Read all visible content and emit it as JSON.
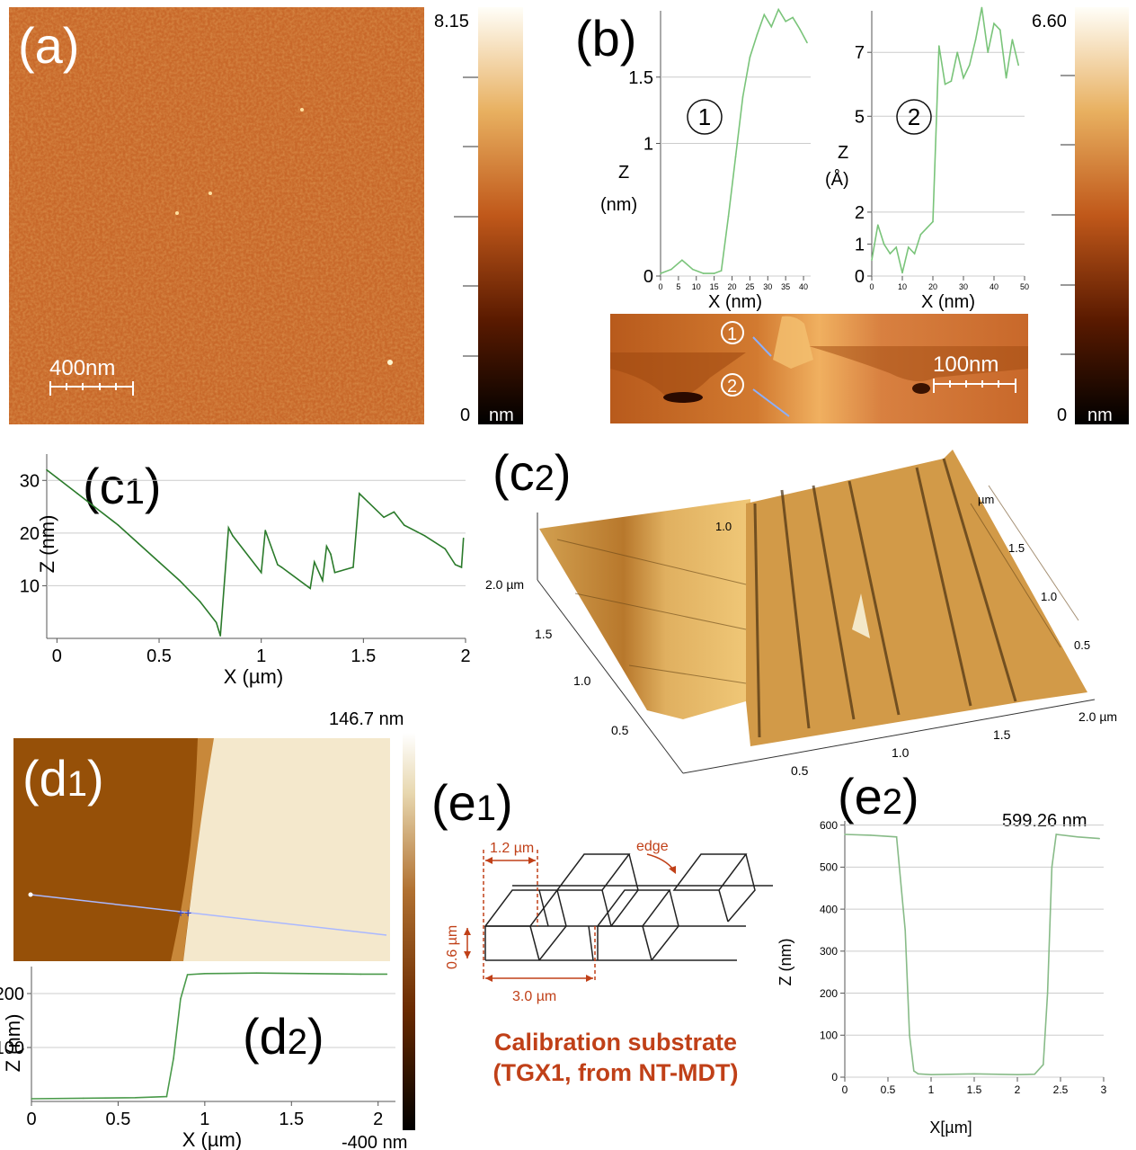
{
  "panels": {
    "a": {
      "label": "(a)",
      "scale_bar": "400nm",
      "colorbar": {
        "max": "8.15",
        "min": "0",
        "unit": "nm"
      }
    },
    "b": {
      "label": "(b)",
      "scale_bar": "100nm",
      "colorbar": {
        "max": "6.60",
        "min": "0",
        "unit": "nm"
      },
      "marker1": "1",
      "marker2": "2"
    },
    "c1": {
      "label": "(c1)"
    },
    "c2": {
      "label": "(c2)",
      "axis_y_ticks": [
        "2.0 µm",
        "1.5",
        "1.0",
        "0.5"
      ],
      "axis_x_ticks": [
        "0.5",
        "1.0",
        "1.5",
        "2.0 µm"
      ],
      "axis_z_ticks": [
        "1.0",
        "µm",
        "1.5",
        "1.0",
        "0.5"
      ]
    },
    "d1": {
      "label": "(d1)",
      "colorbar": {
        "max": "146.7 nm",
        "min": "-400 nm"
      }
    },
    "d2": {
      "label": "(d2)"
    },
    "e1": {
      "label": "(e1)",
      "dim_width": "1.2 µm",
      "dim_period": "3.0 µm",
      "dim_height": "0.6 µm",
      "edge_label": "edge",
      "caption_line1": "Calibration substrate",
      "caption_line2": "(TGX1, from NT-MDT)"
    },
    "e2": {
      "label": "(e2)",
      "annotation": "599.26 nm"
    }
  },
  "chart_data": [
    {
      "id": "b1",
      "type": "line",
      "xlabel": "X (nm)",
      "ylabel": "Z (nm)",
      "marker": "1",
      "xlim": [
        0,
        42
      ],
      "ylim": [
        0,
        2.0
      ],
      "x_ticks": [
        "0",
        "5",
        "10",
        "15",
        "20",
        "25",
        "30",
        "35",
        "40"
      ],
      "y_ticks": [
        "0",
        "1",
        "1.5"
      ],
      "x": [
        0,
        3,
        6,
        9,
        12,
        15,
        17,
        19,
        21,
        23,
        25,
        27,
        29,
        31,
        33,
        35,
        37,
        39,
        41
      ],
      "values": [
        0.02,
        0.05,
        0.12,
        0.05,
        0.02,
        0.02,
        0.04,
        0.45,
        0.9,
        1.35,
        1.65,
        1.82,
        1.97,
        1.88,
        2.01,
        1.92,
        1.95,
        1.86,
        1.76
      ]
    },
    {
      "id": "b2",
      "type": "line",
      "xlabel": "X (nm)",
      "ylabel": "Z (Å)",
      "marker": "2",
      "xlim": [
        0,
        50
      ],
      "ylim": [
        0,
        8.3
      ],
      "x_ticks": [
        "0",
        "10",
        "20",
        "30",
        "40",
        "50"
      ],
      "y_ticks": [
        "0",
        "1",
        "2",
        "5",
        "7"
      ],
      "x": [
        0,
        2,
        4,
        6,
        8,
        10,
        12,
        14,
        16,
        18,
        20,
        22,
        24,
        26,
        28,
        30,
        32,
        34,
        36,
        38,
        40,
        42,
        44,
        46,
        48
      ],
      "values": [
        0.5,
        1.6,
        1.0,
        0.7,
        0.9,
        0.1,
        0.9,
        0.7,
        1.3,
        1.5,
        1.7,
        7.2,
        6.0,
        6.1,
        7.0,
        6.2,
        6.6,
        7.4,
        8.4,
        7.0,
        7.9,
        7.7,
        6.2,
        7.4,
        6.6
      ]
    },
    {
      "id": "c1",
      "type": "line",
      "xlabel": "X (µm)",
      "ylabel": "Z (nm)",
      "xlim": [
        -0.05,
        2.0
      ],
      "ylim": [
        0,
        35
      ],
      "x_ticks": [
        "0",
        "0.5",
        "1",
        "1.5",
        "2"
      ],
      "y_ticks": [
        "10",
        "20",
        "30"
      ],
      "x": [
        -0.05,
        0.0,
        0.1,
        0.2,
        0.3,
        0.4,
        0.5,
        0.6,
        0.7,
        0.78,
        0.8,
        0.84,
        0.86,
        1.0,
        1.02,
        1.08,
        1.1,
        1.24,
        1.26,
        1.3,
        1.32,
        1.34,
        1.36,
        1.45,
        1.48,
        1.52,
        1.6,
        1.65,
        1.7,
        1.8,
        1.9,
        1.95,
        1.98,
        1.99
      ],
      "values": [
        32,
        30.5,
        27.5,
        24.5,
        21.5,
        18,
        14.5,
        11,
        7,
        3,
        0.5,
        21,
        19.5,
        12.5,
        20.5,
        14,
        13.5,
        9.5,
        14.5,
        11,
        17.5,
        16,
        12.5,
        13.5,
        27.5,
        26,
        23,
        24,
        21.5,
        19.5,
        17,
        14,
        13.5,
        19
      ]
    },
    {
      "id": "d2",
      "type": "line",
      "xlabel": "X (µm)",
      "ylabel": "Z (nm)",
      "xlim": [
        0,
        2.1
      ],
      "ylim": [
        0,
        250
      ],
      "x_ticks": [
        "0",
        "0.5",
        "1",
        "1.5",
        "2"
      ],
      "y_ticks": [
        "100",
        "200"
      ],
      "x": [
        0,
        0.3,
        0.6,
        0.78,
        0.82,
        0.86,
        0.9,
        1.0,
        1.3,
        1.6,
        1.9,
        2.05
      ],
      "values": [
        5,
        6,
        7,
        9,
        80,
        190,
        235,
        237,
        238,
        237,
        236,
        236
      ]
    },
    {
      "id": "e2",
      "type": "line",
      "xlabel": "X[µm]",
      "ylabel": "Z (nm)",
      "xlim": [
        0,
        3
      ],
      "ylim": [
        0,
        610
      ],
      "x_ticks": [
        "0",
        "0.5",
        "1",
        "1.5",
        "2",
        "2.5",
        "3"
      ],
      "y_ticks": [
        "0",
        "100",
        "200",
        "300",
        "400",
        "500",
        "600"
      ],
      "x": [
        0,
        0.3,
        0.6,
        0.7,
        0.75,
        0.8,
        0.85,
        1.0,
        1.5,
        2.0,
        2.2,
        2.3,
        2.35,
        2.4,
        2.45,
        2.7,
        2.95
      ],
      "values": [
        578,
        576,
        572,
        350,
        100,
        15,
        8,
        6,
        8,
        6,
        7,
        30,
        200,
        500,
        578,
        572,
        568
      ]
    }
  ]
}
